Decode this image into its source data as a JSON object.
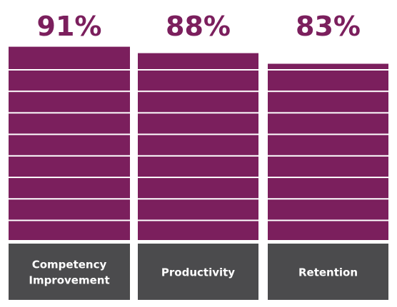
{
  "chart_data": {
    "type": "bar",
    "categories": [
      "Competency\nImprovement",
      "Productivity",
      "Retention"
    ],
    "category_lines": [
      [
        "Competency",
        "Improvement"
      ],
      [
        "Productivity"
      ],
      [
        "Retention"
      ]
    ],
    "values": [
      91,
      88,
      83
    ],
    "value_labels": [
      "91%",
      "88%",
      "83%"
    ],
    "units": "%",
    "title": "",
    "xlabel": "",
    "ylabel": "",
    "ylim": [
      0,
      100
    ],
    "grid": false,
    "legend": "none",
    "colors": {
      "bar": "#7b1f5d",
      "value_text": "#7b1f5d",
      "footer": "#4b4b4d",
      "footer_text": "#ffffff",
      "divider": "#ffffff"
    }
  }
}
